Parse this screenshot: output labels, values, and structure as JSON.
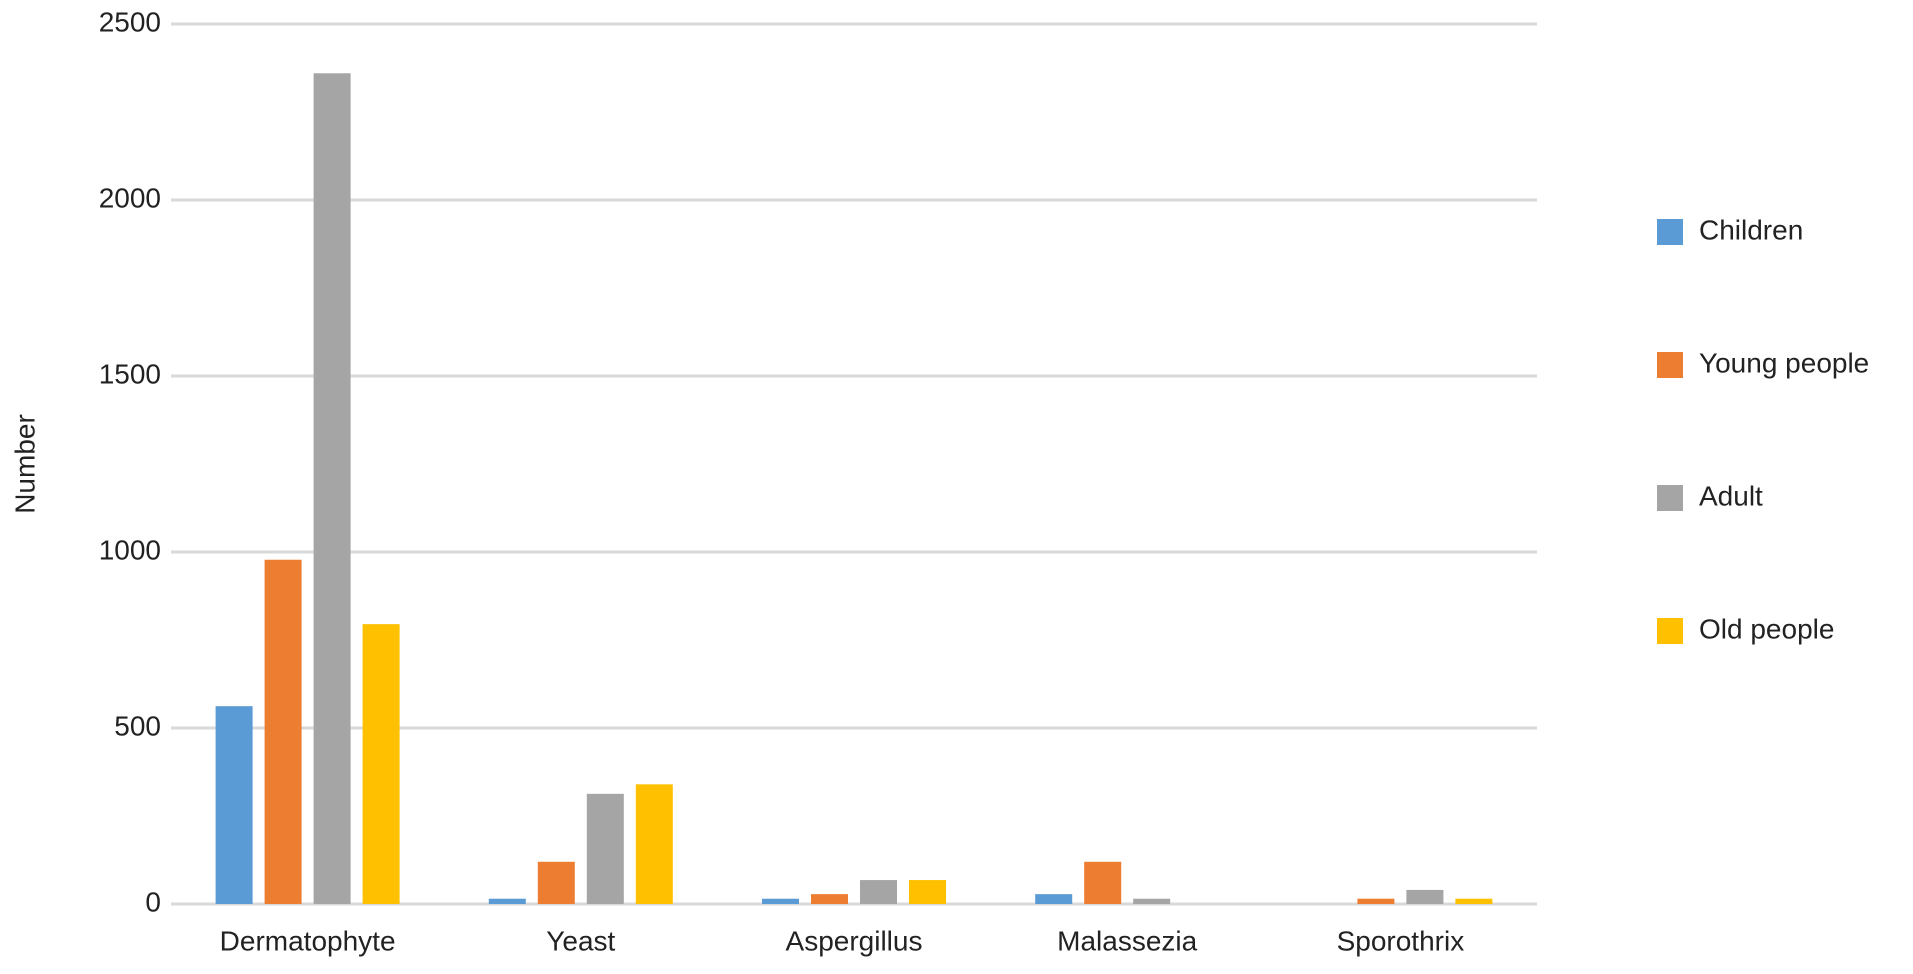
{
  "chart_data": {
    "type": "bar",
    "y_label": "Number",
    "categories": [
      "Dermatophyte",
      "Yeast",
      "Aspergillus",
      "Malassezia",
      "Sporothrix"
    ],
    "series": [
      {
        "name": "Children",
        "color": "#5b9bd5",
        "values": [
          562,
          15,
          15,
          28,
          0
        ]
      },
      {
        "name": "Young people",
        "color": "#ed7d31",
        "values": [
          978,
          120,
          28,
          120,
          15
        ]
      },
      {
        "name": "Adult",
        "color": "#a5a5a5",
        "values": [
          2360,
          313,
          68,
          15,
          40
        ]
      },
      {
        "name": "Old people",
        "color": "#ffc000",
        "values": [
          795,
          340,
          68,
          0,
          15
        ]
      }
    ],
    "ylim": [
      0,
      2500
    ],
    "yticks": [
      0,
      500,
      1000,
      1500,
      2000,
      2500
    ],
    "grid": true,
    "legend": "right"
  }
}
